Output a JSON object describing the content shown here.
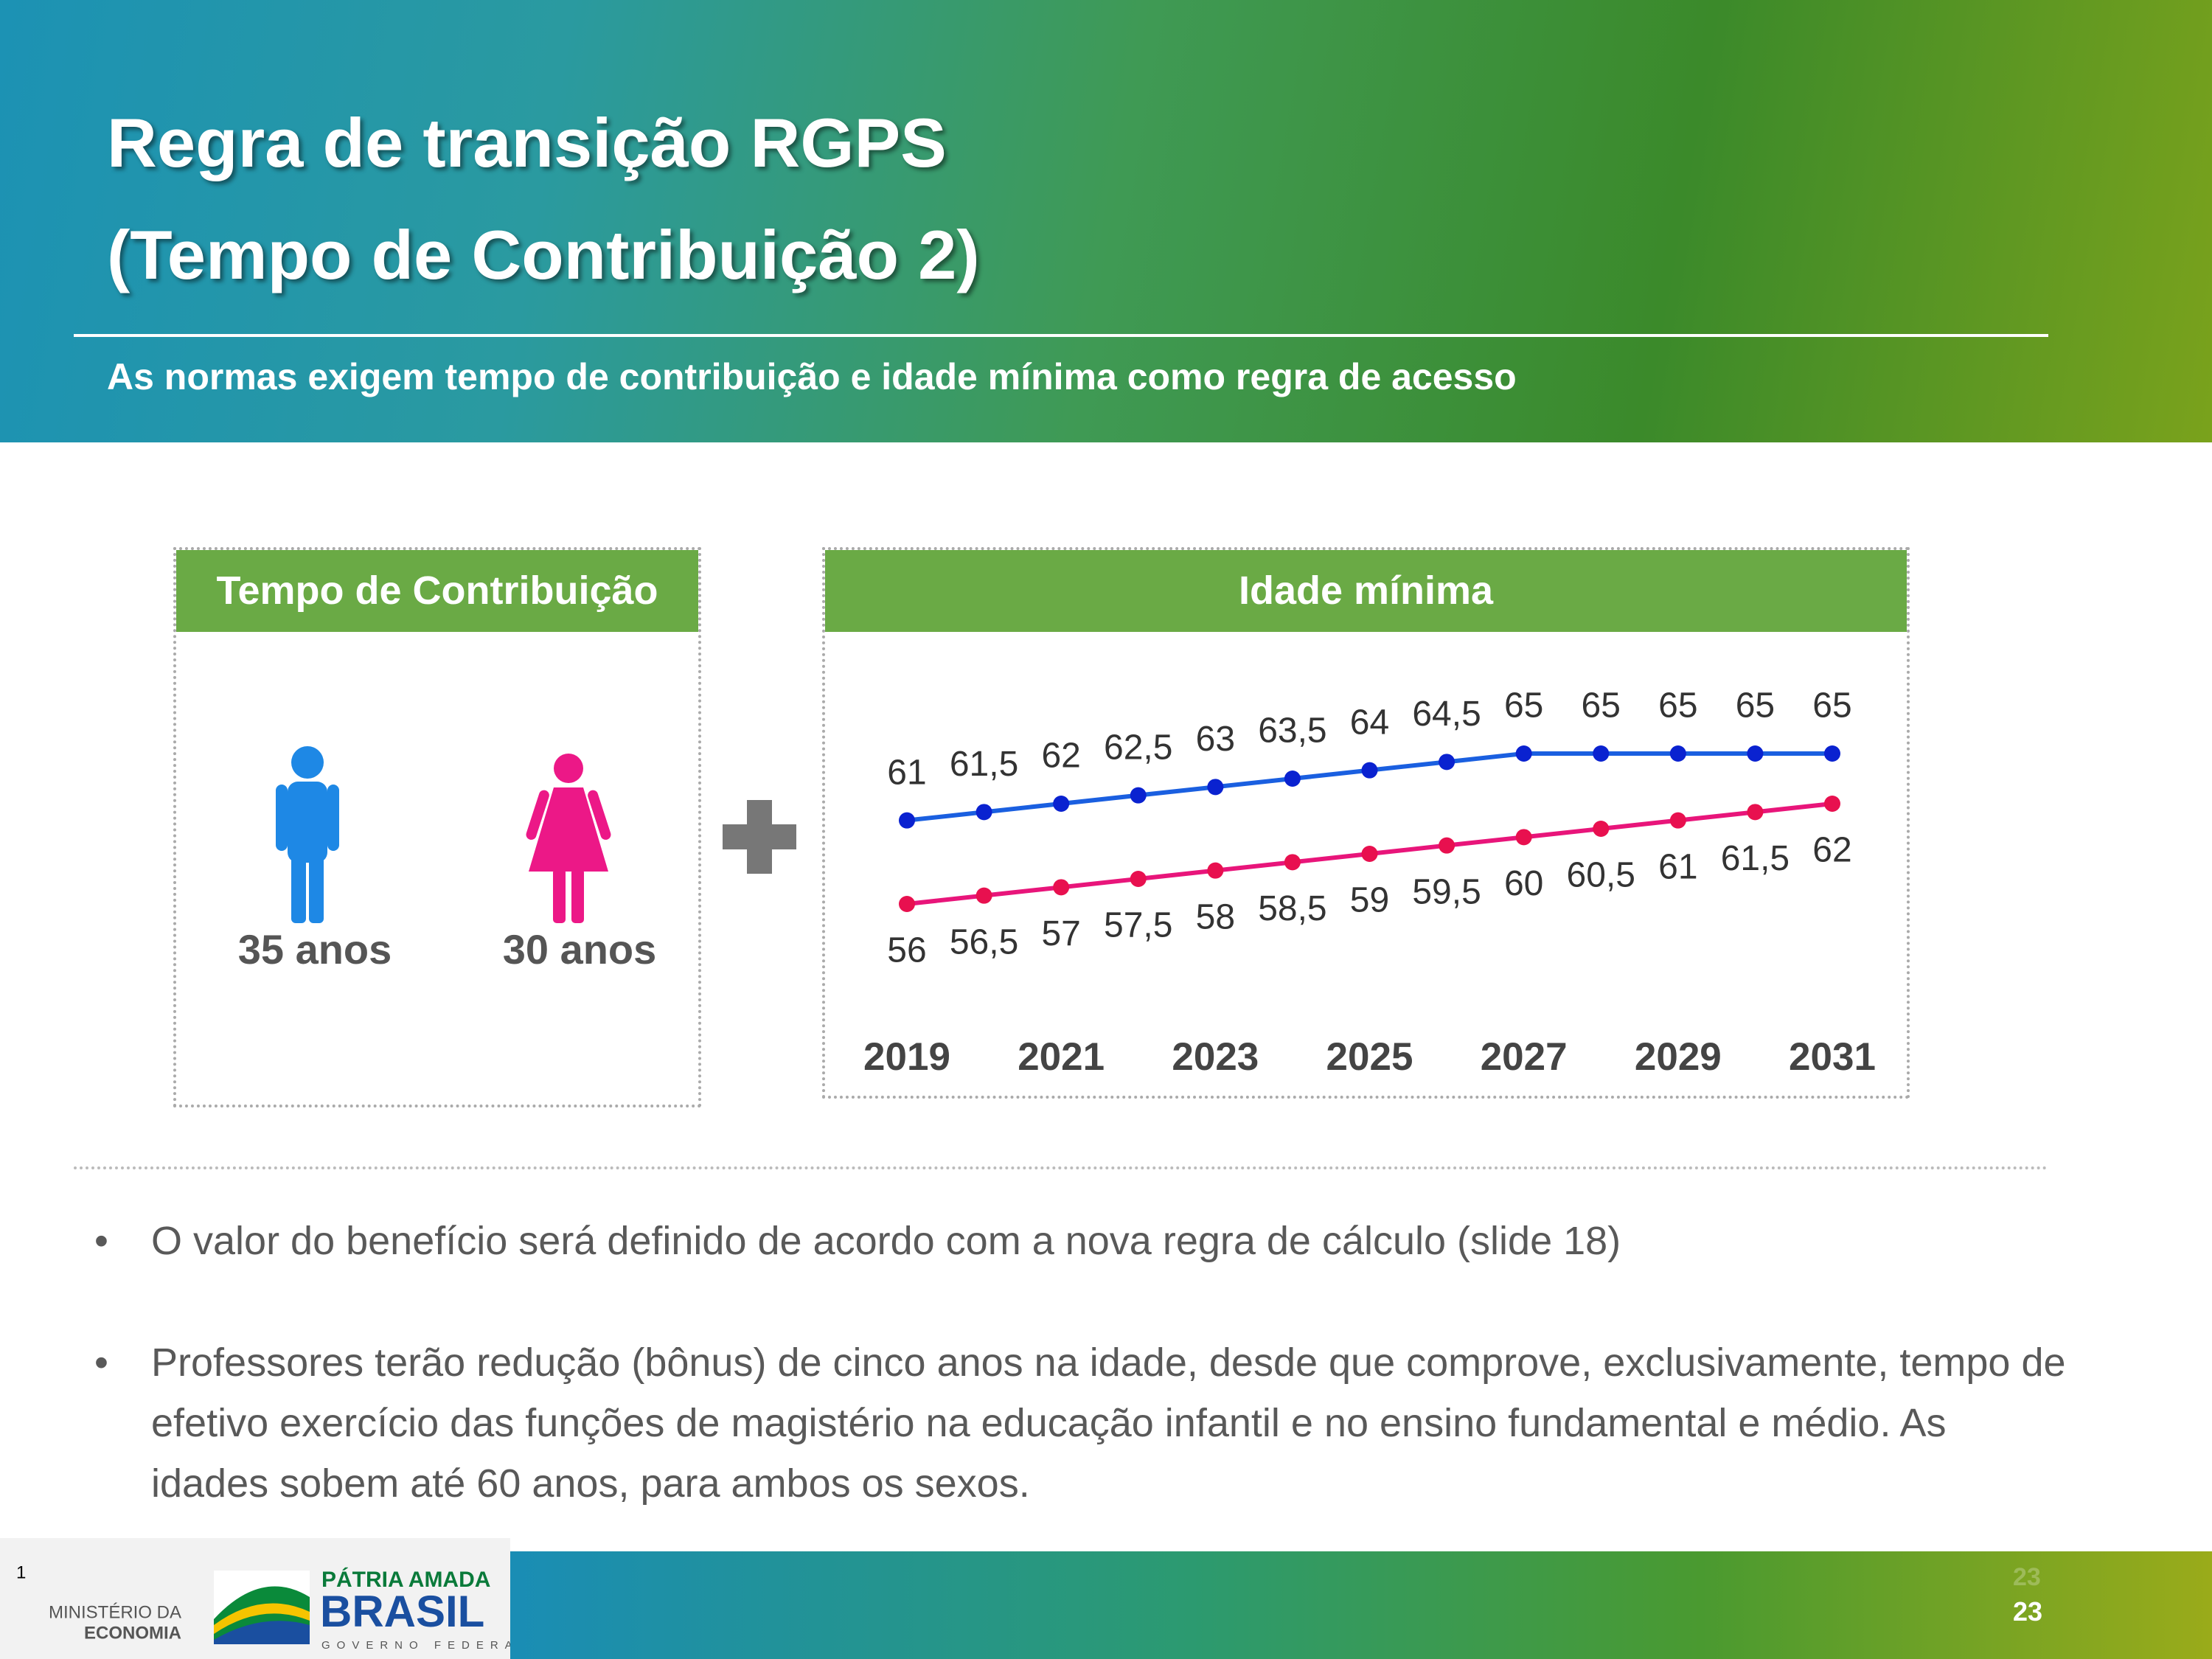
{
  "header": {
    "title_lines": [
      "Regra de transição RGPS",
      "(Tempo de Contribuição 2)"
    ],
    "subtitle": "As normas exigem tempo de contribuição e idade mínima como regra de acesso"
  },
  "contribution_panel": {
    "title": "Tempo de Contribuição",
    "men": "35 anos",
    "women": "30 anos"
  },
  "age_panel": {
    "title": "Idade mínima"
  },
  "chart_data": {
    "type": "line",
    "x": [
      2019,
      2020,
      2021,
      2022,
      2023,
      2024,
      2025,
      2026,
      2027,
      2028,
      2029,
      2030,
      2031
    ],
    "xlim": [
      2019,
      2031
    ],
    "xticks": [
      2019,
      2021,
      2023,
      2025,
      2027,
      2029,
      2031
    ],
    "series": [
      {
        "color": "#1a5fe0",
        "marker_color": "#0a22d0",
        "values": [
          61,
          61.5,
          62,
          62.5,
          63,
          63.5,
          64,
          64.5,
          65,
          65,
          65,
          65,
          65
        ],
        "value_labels": [
          "61",
          "61,5",
          "62",
          "62,5",
          "63",
          "63,5",
          "64",
          "64,5",
          "65",
          "65",
          "65",
          "65",
          "65"
        ]
      },
      {
        "color": "#e8157a",
        "marker_color": "#e8104f",
        "values": [
          56,
          56.5,
          57,
          57.5,
          58,
          58.5,
          59,
          59.5,
          60,
          60.5,
          61,
          61.5,
          62
        ],
        "value_labels": [
          "56",
          "56,5",
          "57",
          "57,5",
          "58",
          "58,5",
          "59",
          "59,5",
          "60",
          "60,5",
          "61",
          "61,5",
          "62"
        ]
      }
    ]
  },
  "bullets": [
    "O valor do benefício será definido  de acordo com a nova regra de cálculo (slide 18)",
    "Professores terão redução (bônus) de cinco anos na idade, desde que comprove, exclusivamente, tempo de efetivo exercício das funções de magistério na educação infantil e no ensino fundamental e médio.  As idades sobem até 60 anos, para ambos os sexos."
  ],
  "footer": {
    "slide_marker": "1",
    "ministry": [
      "MINISTÉRIO DA",
      "ECONOMIA"
    ],
    "brand": [
      "PÁTRIA AMADA",
      "BRASIL",
      "GOVERNO FEDERAL"
    ],
    "page_number_ghost": "23",
    "page_number": "23"
  }
}
